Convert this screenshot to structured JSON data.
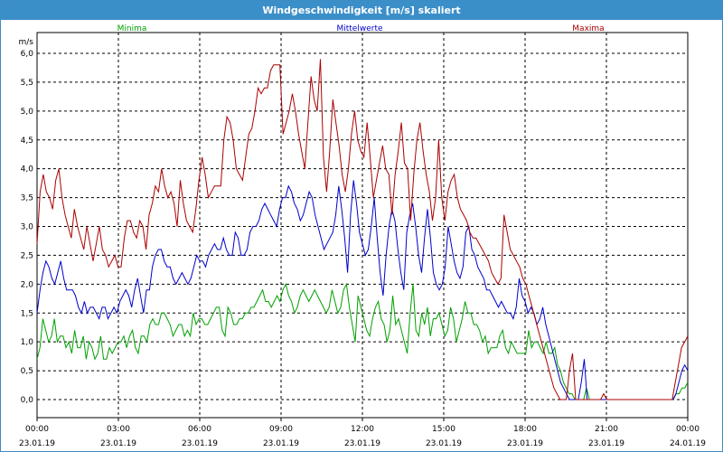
{
  "window": {
    "title": "Windgeschwindigkeit [m/s] skaliert"
  },
  "chart_data": {
    "type": "line",
    "title": "Windgeschwindigkeit [m/s] skaliert",
    "ylabel": "m/s",
    "xlabel": "",
    "ylim": [
      0,
      6
    ],
    "yticks": [
      "0,0",
      "0,5",
      "1,0",
      "1,5",
      "2,0",
      "2,5",
      "3,0",
      "3,5",
      "4,0",
      "4,5",
      "5,0",
      "5,5",
      "6,0"
    ],
    "xticks": [
      {
        "time": "00:00",
        "date": "23.01.19"
      },
      {
        "time": "03:00",
        "date": "23.01.19"
      },
      {
        "time": "06:00",
        "date": "23.01.19"
      },
      {
        "time": "09:00",
        "date": "23.01.19"
      },
      {
        "time": "12:00",
        "date": "23.01.19"
      },
      {
        "time": "15:00",
        "date": "23.01.19"
      },
      {
        "time": "18:00",
        "date": "23.01.19"
      },
      {
        "time": "21:00",
        "date": "23.01.19"
      },
      {
        "time": "00:00",
        "date": "24.01.19"
      }
    ],
    "xlim": [
      "23.01.19 00:00",
      "24.01.19 00:00"
    ],
    "x_step_minutes": 10,
    "grid": true,
    "legend": "top",
    "series": [
      {
        "name": "Minima",
        "color": "#00a000",
        "values": [
          0.7,
          0.9,
          1.4,
          1.2,
          1.0,
          1.1,
          1.4,
          1.0,
          1.1,
          1.1,
          0.9,
          1.0,
          0.8,
          1.2,
          0.9,
          0.9,
          1.1,
          0.7,
          1.0,
          0.9,
          0.7,
          0.8,
          1.1,
          0.7,
          0.7,
          0.9,
          0.8,
          0.9,
          1.0,
          1.0,
          1.1,
          0.9,
          1.1,
          1.2,
          0.9,
          0.8,
          1.1,
          1.1,
          1.0,
          1.3,
          1.4,
          1.3,
          1.3,
          1.5,
          1.5,
          1.4,
          1.3,
          1.1,
          1.2,
          1.3,
          1.3,
          1.1,
          1.2,
          1.1,
          1.5,
          1.3,
          1.4,
          1.4,
          1.3,
          1.3,
          1.4,
          1.5,
          1.6,
          1.6,
          1.2,
          1.1,
          1.6,
          1.5,
          1.3,
          1.3,
          1.4,
          1.4,
          1.5,
          1.5,
          1.6,
          1.6,
          1.7,
          1.8,
          1.9,
          1.7,
          1.7,
          1.6,
          1.7,
          1.8,
          1.7,
          1.9,
          2.0,
          1.8,
          1.7,
          1.5,
          1.6,
          1.8,
          1.9,
          1.8,
          1.7,
          1.8,
          1.9,
          1.8,
          1.7,
          1.6,
          1.5,
          1.6,
          1.9,
          1.7,
          1.5,
          1.6,
          1.9,
          2.0,
          1.6,
          1.3,
          1.0,
          1.8,
          1.6,
          1.4,
          1.2,
          1.1,
          1.4,
          1.6,
          1.7,
          1.4,
          1.3,
          1.0,
          1.2,
          1.8,
          1.3,
          1.4,
          1.2,
          1.0,
          0.8,
          1.5,
          2.0,
          1.2,
          1.1,
          1.5,
          1.3,
          1.6,
          1.1,
          1.4,
          1.4,
          1.5,
          1.3,
          1.1,
          1.2,
          1.6,
          1.4,
          1.0,
          1.2,
          1.4,
          1.7,
          1.5,
          1.5,
          1.3,
          1.3,
          1.2,
          1.0,
          1.1,
          0.8,
          0.9,
          0.9,
          0.9,
          1.1,
          1.2,
          0.9,
          0.8,
          1.0,
          0.9,
          0.8,
          0.8,
          0.8,
          0.8,
          1.2,
          0.9,
          1.0,
          1.0,
          0.9,
          0.8,
          1.0,
          0.8,
          0.8,
          0.9,
          0.6,
          0.5,
          0.3,
          0.2,
          0.1,
          0.1,
          0.0,
          0.0,
          0.0,
          0.0,
          0.2,
          0.0,
          0.0,
          0.0,
          0.0,
          0.0,
          0.0,
          0.0,
          0.0,
          0.0,
          0.0,
          0.0,
          0.0,
          0.0,
          0.0,
          0.0,
          0.0,
          0.0,
          0.0,
          0.0,
          0.0,
          0.0,
          0.0,
          0.0,
          0.0,
          0.0,
          0.0,
          0.0,
          0.0,
          0.0,
          0.0,
          0.1,
          0.1,
          0.2,
          0.2,
          0.3
        ]
      },
      {
        "name": "Mittelwerte",
        "color": "#0000cc",
        "values": [
          1.5,
          1.9,
          2.2,
          2.4,
          2.3,
          2.1,
          2.0,
          2.2,
          2.4,
          2.1,
          1.9,
          1.9,
          1.9,
          1.8,
          1.6,
          1.5,
          1.7,
          1.5,
          1.6,
          1.6,
          1.5,
          1.4,
          1.6,
          1.6,
          1.4,
          1.5,
          1.6,
          1.5,
          1.7,
          1.8,
          1.9,
          1.8,
          1.6,
          1.9,
          2.1,
          1.8,
          1.5,
          1.9,
          1.9,
          2.3,
          2.5,
          2.6,
          2.6,
          2.4,
          2.3,
          2.3,
          2.1,
          2.0,
          2.1,
          2.2,
          2.1,
          2.0,
          2.1,
          2.3,
          2.5,
          2.4,
          2.4,
          2.3,
          2.5,
          2.6,
          2.7,
          2.6,
          2.6,
          2.8,
          2.6,
          2.5,
          2.5,
          2.9,
          2.8,
          2.5,
          2.5,
          2.6,
          2.9,
          3.0,
          3.0,
          3.1,
          3.3,
          3.4,
          3.3,
          3.2,
          3.1,
          3.0,
          3.3,
          3.5,
          3.5,
          3.7,
          3.6,
          3.4,
          3.3,
          3.1,
          3.2,
          3.4,
          3.6,
          3.5,
          3.2,
          3.0,
          2.8,
          2.6,
          2.7,
          2.8,
          2.9,
          3.2,
          3.7,
          3.3,
          2.8,
          2.2,
          3.2,
          3.8,
          3.4,
          2.9,
          2.7,
          2.5,
          2.6,
          3.0,
          3.5,
          2.8,
          2.2,
          1.8,
          2.5,
          3.0,
          3.3,
          3.1,
          2.6,
          2.2,
          1.9,
          2.9,
          3.2,
          3.4,
          3.0,
          2.5,
          2.2,
          2.8,
          3.3,
          2.8,
          2.2,
          2.0,
          1.9,
          2.0,
          2.3,
          3.0,
          2.7,
          2.4,
          2.2,
          2.1,
          2.3,
          2.9,
          3.0,
          2.6,
          2.5,
          2.3,
          2.2,
          2.1,
          1.9,
          1.9,
          1.8,
          1.7,
          1.6,
          1.7,
          1.6,
          1.5,
          1.5,
          1.4,
          1.6,
          2.1,
          1.8,
          1.7,
          1.5,
          1.6,
          1.5,
          1.3,
          1.4,
          1.6,
          1.3,
          1.1,
          0.9,
          0.7,
          0.5,
          0.3,
          0.2,
          0.1,
          0.0,
          0.0,
          0.0,
          0.0,
          0.3,
          0.7,
          0.0,
          0.0,
          0.0,
          0.0,
          0.0,
          0.0,
          0.0,
          0.0,
          0.0,
          0.0,
          0.0,
          0.0,
          0.0,
          0.0,
          0.0,
          0.0,
          0.0,
          0.0,
          0.0,
          0.0,
          0.0,
          0.0,
          0.0,
          0.0,
          0.0,
          0.0,
          0.0,
          0.0,
          0.0,
          0.0,
          0.1,
          0.3,
          0.5,
          0.6,
          0.5
        ]
      },
      {
        "name": "Maxima",
        "color": "#aa0000",
        "values": [
          2.7,
          3.6,
          3.9,
          3.6,
          3.5,
          3.3,
          3.8,
          4.0,
          3.5,
          3.2,
          3.0,
          2.8,
          3.3,
          3.0,
          2.8,
          2.6,
          3.0,
          2.7,
          2.4,
          2.7,
          3.0,
          2.6,
          2.5,
          2.3,
          2.4,
          2.5,
          2.3,
          2.3,
          2.8,
          3.1,
          3.1,
          2.9,
          2.8,
          3.1,
          3.0,
          2.6,
          3.2,
          3.4,
          3.7,
          3.6,
          4.0,
          3.7,
          3.5,
          3.6,
          3.4,
          3.0,
          3.8,
          3.4,
          3.1,
          3.0,
          2.9,
          3.3,
          3.8,
          4.2,
          3.9,
          3.5,
          3.6,
          3.7,
          3.7,
          3.7,
          4.5,
          4.9,
          4.8,
          4.5,
          4.0,
          3.9,
          3.8,
          4.2,
          4.6,
          4.7,
          5.0,
          5.4,
          5.3,
          5.4,
          5.4,
          5.7,
          5.8,
          5.8,
          5.8,
          4.6,
          4.8,
          5.0,
          5.3,
          5.0,
          4.6,
          4.3,
          4.0,
          4.8,
          5.6,
          5.2,
          5.0,
          5.9,
          4.2,
          3.6,
          4.3,
          5.2,
          4.8,
          4.4,
          3.9,
          3.6,
          4.0,
          4.6,
          5.0,
          4.5,
          4.3,
          4.2,
          4.8,
          4.2,
          3.5,
          3.8,
          4.1,
          4.4,
          4.0,
          3.9,
          3.2,
          3.9,
          4.3,
          4.8,
          4.1,
          4.0,
          3.1,
          3.9,
          4.5,
          4.8,
          4.3,
          3.9,
          3.6,
          3.1,
          3.5,
          4.5,
          3.5,
          3.1,
          3.6,
          3.8,
          3.9,
          3.5,
          3.3,
          3.2,
          3.1,
          2.9,
          2.8,
          2.8,
          2.7,
          2.6,
          2.5,
          2.4,
          2.2,
          2.1,
          2.0,
          2.1,
          3.2,
          2.9,
          2.6,
          2.5,
          2.4,
          2.3,
          2.1,
          2.0,
          1.8,
          1.6,
          1.4,
          1.2,
          1.0,
          0.8,
          0.6,
          0.4,
          0.2,
          0.1,
          0.0,
          0.0,
          0.0,
          0.5,
          0.8,
          0.0,
          0.0,
          0.0,
          0.0,
          0.0,
          0.0,
          0.0,
          0.0,
          0.0,
          0.1,
          0.0,
          0.0,
          0.0,
          0.0,
          0.0,
          0.0,
          0.0,
          0.0,
          0.0,
          0.0,
          0.0,
          0.0,
          0.0,
          0.0,
          0.0,
          0.0,
          0.0,
          0.0,
          0.0,
          0.0,
          0.0,
          0.0,
          0.3,
          0.6,
          0.9,
          1.0,
          1.1
        ]
      }
    ]
  }
}
